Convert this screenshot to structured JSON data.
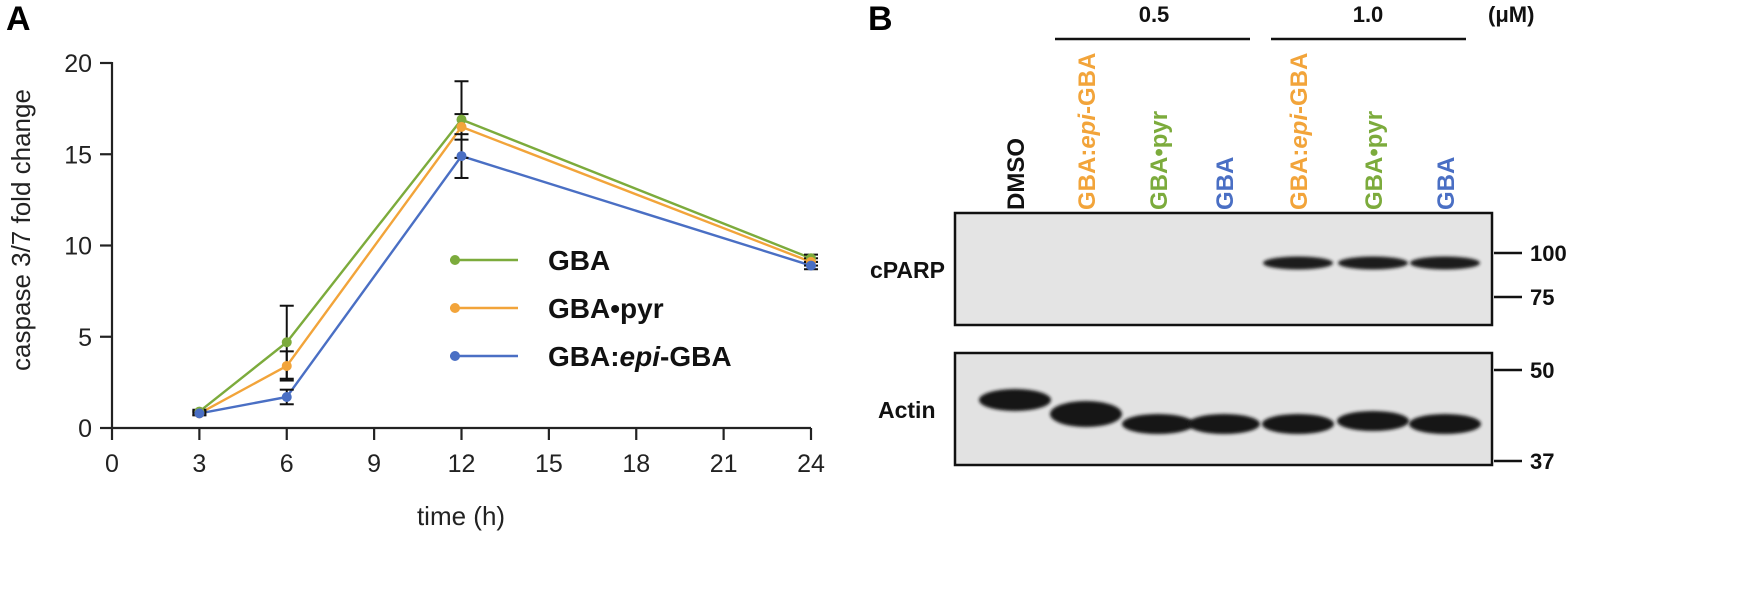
{
  "colors": {
    "GBA": "#7cab3c",
    "GBApyr": "#f2a43a",
    "GBAepi": "#4a6fc4",
    "axis": "#222222",
    "label_black": "#111111"
  },
  "panels": {
    "a_letter": "A",
    "b_letter": "B"
  },
  "chart_data": [
    {
      "type": "line",
      "xlabel": "time (h)",
      "ylabel": "caspase 3/7 fold change",
      "xlim": [
        0,
        24
      ],
      "ylim": [
        0,
        20
      ],
      "xticks": [
        0,
        3,
        6,
        9,
        12,
        15,
        18,
        21,
        24
      ],
      "yticks": [
        0,
        5,
        10,
        15,
        20
      ],
      "x": [
        3,
        6,
        12,
        24
      ],
      "grid": false,
      "legend_position": "center-right",
      "series": [
        {
          "name": "GBA",
          "name_parts": [
            "GBA",
            "",
            ""
          ],
          "color": "#7cab3c",
          "values": [
            0.9,
            4.7,
            16.9,
            9.3
          ],
          "err": [
            0.1,
            2.0,
            2.1,
            0.2
          ]
        },
        {
          "name": "GBA•pyr",
          "name_parts": [
            "GBA•pyr",
            "",
            ""
          ],
          "color": "#f2a43a",
          "values": [
            0.8,
            3.4,
            16.5,
            9.1
          ],
          "err": [
            0.1,
            0.8,
            0.7,
            0.2
          ]
        },
        {
          "name": "GBA:epi-GBA",
          "name_parts": [
            "GBA:",
            "epi",
            "-GBA"
          ],
          "color": "#4a6fc4",
          "values": [
            0.8,
            1.7,
            14.9,
            8.9
          ],
          "err": [
            0.1,
            0.4,
            1.2,
            0.2
          ]
        }
      ]
    }
  ],
  "blot": {
    "concentrations": [
      {
        "label": "0.5"
      },
      {
        "label": "1.0"
      }
    ],
    "unit": "(μM)",
    "lanes": [
      {
        "parts": [
          "DMSO",
          "",
          ""
        ],
        "color": "#111111"
      },
      {
        "parts": [
          "GBA:",
          "epi",
          "-GBA"
        ],
        "color": "#f2a43a"
      },
      {
        "parts": [
          "GBA•pyr",
          "",
          ""
        ],
        "color": "#7cab3c"
      },
      {
        "parts": [
          "GBA",
          "",
          ""
        ],
        "color": "#4a6fc4"
      },
      {
        "parts": [
          "GBA:",
          "epi",
          "-GBA"
        ],
        "color": "#f2a43a"
      },
      {
        "parts": [
          "GBA•pyr",
          "",
          ""
        ],
        "color": "#7cab3c"
      },
      {
        "parts": [
          "GBA",
          "",
          ""
        ],
        "color": "#4a6fc4"
      }
    ],
    "rows": [
      {
        "label": "cPARP",
        "markers": [
          "100",
          "75"
        ],
        "band_presence": [
          0,
          0,
          0,
          0,
          1,
          1,
          1
        ]
      },
      {
        "label": "Actin",
        "markers": [
          "50",
          "37"
        ],
        "band_presence": [
          1,
          1,
          1,
          1,
          1,
          1,
          1
        ]
      }
    ]
  }
}
